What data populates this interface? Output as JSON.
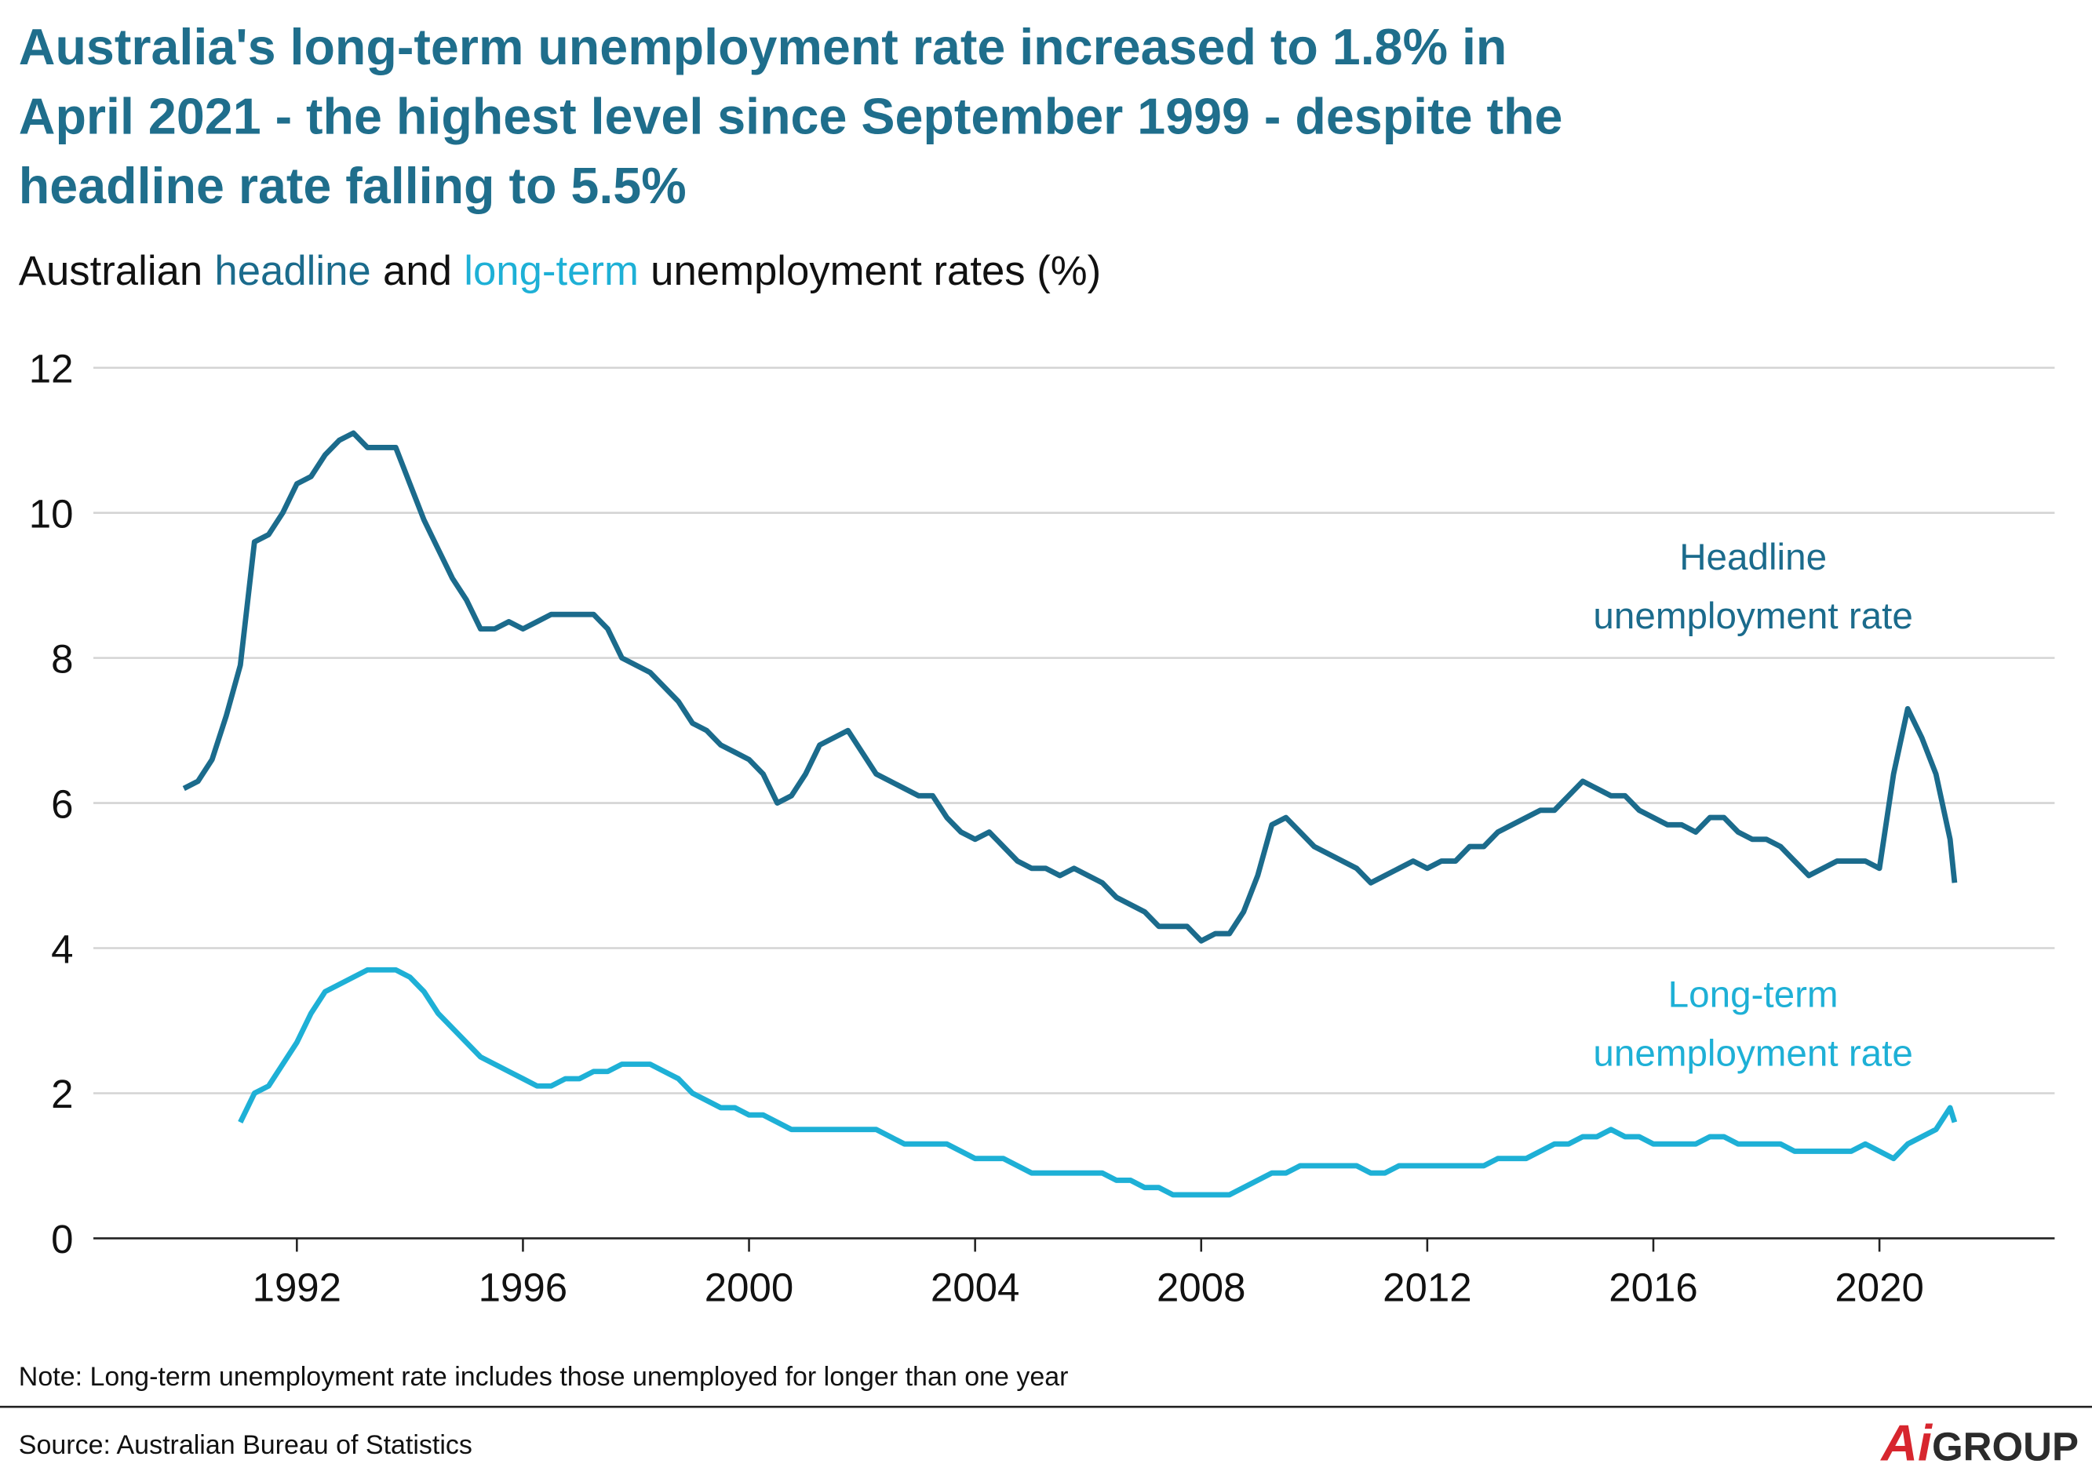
{
  "chart_data": {
    "type": "line",
    "title": [
      "Australia's long-term unemployment rate increased to 1.8% in",
      "April 2021 - the highest level since September 1999 - despite the",
      "headline rate falling to 5.5%"
    ],
    "subtitle": [
      "Australian",
      "headline",
      "and",
      "long-term",
      "unemployment rates (%)"
    ],
    "note": "Note: Long-term unemployment rate includes those unemployed for longer than one year",
    "source": "Source: Australian Bureau of Statistics",
    "logo": [
      "Ai",
      "GROUP"
    ],
    "grid": true,
    "xlim": [
      1988.4,
      2023.1
    ],
    "xticks": [
      1992,
      1996,
      2000,
      2004,
      2008,
      2012,
      2016,
      2020
    ],
    "ylim": [
      0,
      12
    ],
    "yticks": [
      0,
      2,
      4,
      6,
      8,
      10,
      12
    ],
    "x": [
      1990,
      1990.25,
      1990.5,
      1990.75,
      1991,
      1991.25,
      1991.5,
      1991.75,
      1992,
      1992.25,
      1992.5,
      1992.75,
      1993,
      1993.25,
      1993.5,
      1993.75,
      1994,
      1994.25,
      1994.5,
      1994.75,
      1995,
      1995.25,
      1995.5,
      1995.75,
      1996,
      1996.25,
      1996.5,
      1996.75,
      1997,
      1997.25,
      1997.5,
      1997.75,
      1998,
      1998.25,
      1998.5,
      1998.75,
      1999,
      1999.25,
      1999.5,
      1999.75,
      2000,
      2000.25,
      2000.5,
      2000.75,
      2001,
      2001.25,
      2001.5,
      2001.75,
      2002,
      2002.25,
      2002.5,
      2002.75,
      2003,
      2003.25,
      2003.5,
      2003.75,
      2004,
      2004.25,
      2004.5,
      2004.75,
      2005,
      2005.25,
      2005.5,
      2005.75,
      2006,
      2006.25,
      2006.5,
      2006.75,
      2007,
      2007.25,
      2007.5,
      2007.75,
      2008,
      2008.25,
      2008.5,
      2008.75,
      2009,
      2009.25,
      2009.5,
      2009.75,
      2010,
      2010.25,
      2010.5,
      2010.75,
      2011,
      2011.25,
      2011.5,
      2011.75,
      2012,
      2012.25,
      2012.5,
      2012.75,
      2013,
      2013.25,
      2013.5,
      2013.75,
      2014,
      2014.25,
      2014.5,
      2014.75,
      2015,
      2015.25,
      2015.5,
      2015.75,
      2016,
      2016.25,
      2016.5,
      2016.75,
      2017,
      2017.25,
      2017.5,
      2017.75,
      2018,
      2018.25,
      2018.5,
      2018.75,
      2019,
      2019.25,
      2019.5,
      2019.75,
      2020,
      2020.25,
      2020.5,
      2020.75,
      2021,
      2021.25,
      2021.33
    ],
    "series": [
      {
        "name": "Headline unemployment rate",
        "label": [
          "Headline",
          "unemployment rate"
        ],
        "color": "#1b6b8c",
        "values": [
          6.2,
          6.3,
          6.6,
          7.2,
          7.9,
          9.6,
          9.7,
          10.0,
          10.4,
          10.5,
          10.8,
          11.0,
          11.1,
          10.9,
          10.9,
          10.9,
          10.4,
          9.9,
          9.5,
          9.1,
          8.8,
          8.4,
          8.4,
          8.5,
          8.4,
          8.5,
          8.6,
          8.6,
          8.6,
          8.6,
          8.4,
          8.0,
          7.9,
          7.8,
          7.6,
          7.4,
          7.1,
          7.0,
          6.8,
          6.7,
          6.6,
          6.4,
          6.0,
          6.1,
          6.4,
          6.8,
          6.9,
          7.0,
          6.7,
          6.4,
          6.3,
          6.2,
          6.1,
          6.1,
          5.8,
          5.6,
          5.5,
          5.6,
          5.4,
          5.2,
          5.1,
          5.1,
          5.0,
          5.1,
          5.0,
          4.9,
          4.7,
          4.6,
          4.5,
          4.3,
          4.3,
          4.3,
          4.1,
          4.2,
          4.2,
          4.5,
          5.0,
          5.7,
          5.8,
          5.6,
          5.4,
          5.3,
          5.2,
          5.1,
          4.9,
          5.0,
          5.1,
          5.2,
          5.1,
          5.2,
          5.2,
          5.4,
          5.4,
          5.6,
          5.7,
          5.8,
          5.9,
          5.9,
          6.1,
          6.3,
          6.2,
          6.1,
          6.1,
          5.9,
          5.8,
          5.7,
          5.7,
          5.6,
          5.8,
          5.8,
          5.6,
          5.5,
          5.5,
          5.4,
          5.2,
          5.0,
          5.1,
          5.2,
          5.2,
          5.2,
          5.1,
          6.4,
          7.3,
          6.9,
          6.4,
          5.5,
          4.9
        ]
      },
      {
        "name": "Long-term unemployment rate",
        "label": [
          "Long-term",
          "unemployment rate"
        ],
        "color": "#1eb0d6",
        "values": [
          null,
          null,
          null,
          null,
          1.6,
          2.0,
          2.1,
          2.4,
          2.7,
          3.1,
          3.4,
          3.5,
          3.6,
          3.7,
          3.7,
          3.7,
          3.6,
          3.4,
          3.1,
          2.9,
          2.7,
          2.5,
          2.4,
          2.3,
          2.2,
          2.1,
          2.1,
          2.2,
          2.2,
          2.3,
          2.3,
          2.4,
          2.4,
          2.4,
          2.3,
          2.2,
          2.0,
          1.9,
          1.8,
          1.8,
          1.7,
          1.7,
          1.6,
          1.5,
          1.5,
          1.5,
          1.5,
          1.5,
          1.5,
          1.5,
          1.4,
          1.3,
          1.3,
          1.3,
          1.3,
          1.2,
          1.1,
          1.1,
          1.1,
          1.0,
          0.9,
          0.9,
          0.9,
          0.9,
          0.9,
          0.9,
          0.8,
          0.8,
          0.7,
          0.7,
          0.6,
          0.6,
          0.6,
          0.6,
          0.6,
          0.7,
          0.8,
          0.9,
          0.9,
          1.0,
          1.0,
          1.0,
          1.0,
          1.0,
          0.9,
          0.9,
          1.0,
          1.0,
          1.0,
          1.0,
          1.0,
          1.0,
          1.0,
          1.1,
          1.1,
          1.1,
          1.2,
          1.3,
          1.3,
          1.4,
          1.4,
          1.5,
          1.4,
          1.4,
          1.3,
          1.3,
          1.3,
          1.3,
          1.4,
          1.4,
          1.3,
          1.3,
          1.3,
          1.3,
          1.2,
          1.2,
          1.2,
          1.2,
          1.2,
          1.3,
          1.2,
          1.1,
          1.3,
          1.4,
          1.5,
          1.8,
          1.6
        ]
      }
    ]
  }
}
